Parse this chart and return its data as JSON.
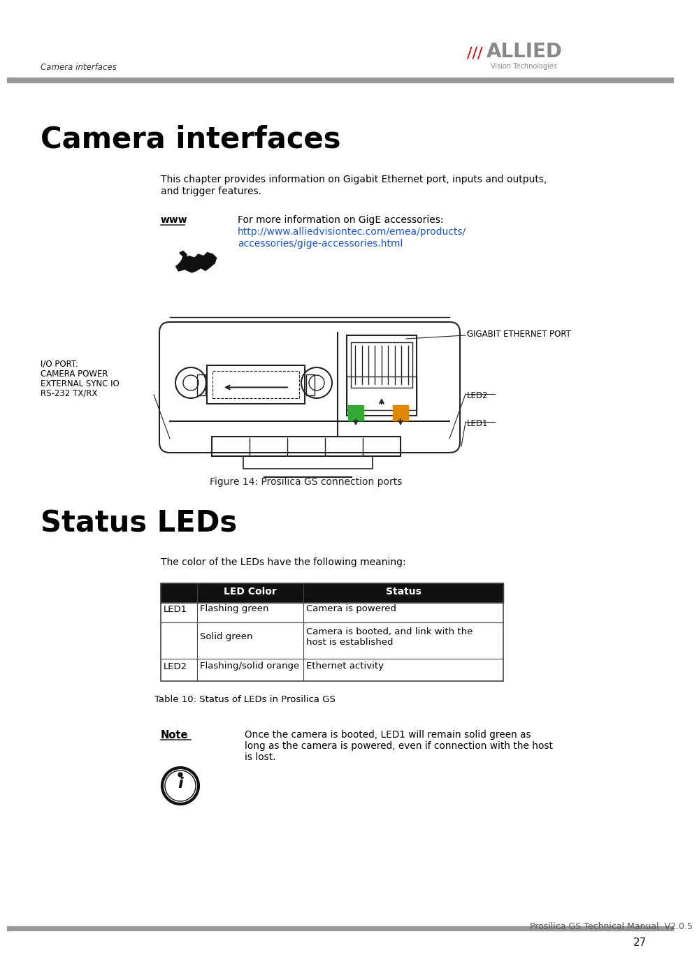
{
  "page_title": "Camera interfaces",
  "header_label": "Camera interfaces",
  "bg_color": "#ffffff",
  "intro_text_line1": "This chapter provides information on Gigabit Ethernet port, inputs and outputs,",
  "intro_text_line2": "and trigger features.",
  "www_label": "www",
  "www_text_line1": "For more information on GigE accessories:",
  "www_url_line1": "http://www.alliedvisiontec.com/emea/products/",
  "www_url_line2": "accessories/gige-accessories.html",
  "section2_title": "Status LEDs",
  "led_intro": "The color of the LEDs have the following meaning:",
  "table_caption": "Table 10: Status of LEDs in Prosilica GS",
  "note_label": "Note",
  "note_text_line1": "Once the camera is booted, LED1 will remain solid green as",
  "note_text_line2": "long as the camera is powered, even if connection with the host",
  "note_text_line3": "is lost.",
  "figure_caption": "Figure 14: Prosilica GS connection ports",
  "diagram_label_ethernet": "GIGABIT ETHERNET PORT",
  "diagram_label_io_line1": "I/O PORT:",
  "diagram_label_io_line2": "CAMERA POWER",
  "diagram_label_io_line3": "EXTERNAL SYNC IO",
  "diagram_label_io_line4": "RS-232 TX/RX",
  "diagram_label_led2": "LED2",
  "diagram_label_led1": "LED1",
  "footer_text": "Prosilica GS Technical Manual  V2.0.5",
  "footer_page": "27",
  "green_color": "#33aa33",
  "orange_color": "#dd8800",
  "table_header_bg": "#111111",
  "table_header_fg": "#ffffff",
  "table_border_color": "#444444",
  "line_color": "#222222",
  "logo_slash_color": "#cc0000",
  "logo_text_color": "#888888",
  "url_color": "#2255bb",
  "header_bar_color": "#999999",
  "footer_bar_color": "#999999"
}
